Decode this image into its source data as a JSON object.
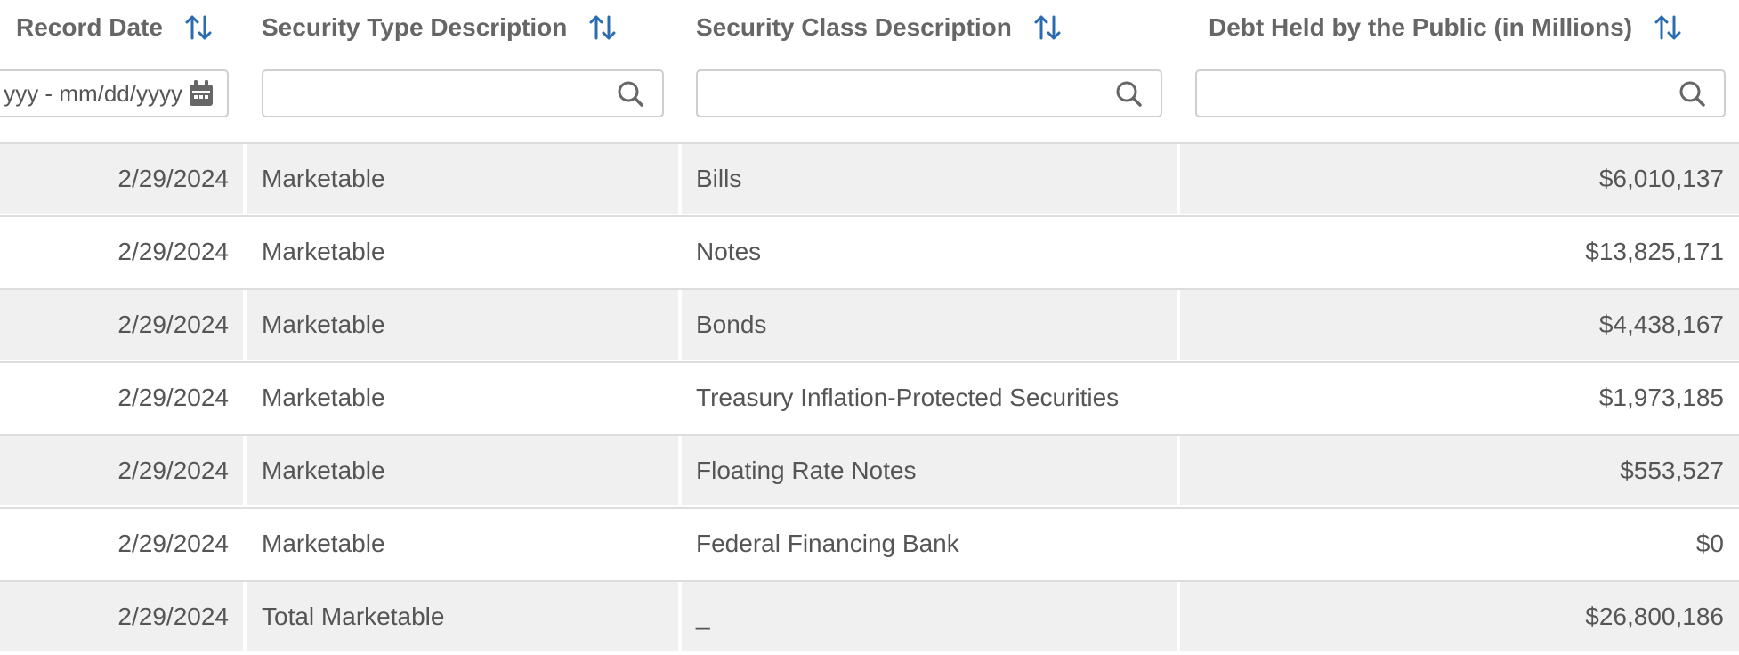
{
  "columns": [
    {
      "label": "Record Date",
      "filter_text": "yyy - mm/dd/yyyy",
      "filter_icon": "calendar-icon",
      "sort_icon": "sort-arrows-icon"
    },
    {
      "label": "Security Type Description",
      "filter_text": "",
      "filter_icon": "search-icon",
      "sort_icon": "sort-arrows-icon"
    },
    {
      "label": "Security Class Description",
      "filter_text": "",
      "filter_icon": "search-icon",
      "sort_icon": "sort-arrows-icon"
    },
    {
      "label": "Debt Held by the Public (in Millions)",
      "filter_text": "",
      "filter_icon": "search-icon",
      "sort_icon": "sort-arrows-icon"
    }
  ],
  "rows": [
    {
      "record_date": "2/29/2024",
      "security_type": "Marketable",
      "security_class": "Bills",
      "debt_held": "$6,010,137"
    },
    {
      "record_date": "2/29/2024",
      "security_type": "Marketable",
      "security_class": "Notes",
      "debt_held": "$13,825,171"
    },
    {
      "record_date": "2/29/2024",
      "security_type": "Marketable",
      "security_class": "Bonds",
      "debt_held": "$4,438,167"
    },
    {
      "record_date": "2/29/2024",
      "security_type": "Marketable",
      "security_class": "Treasury Inflation-Protected Securities",
      "debt_held": "$1,973,185"
    },
    {
      "record_date": "2/29/2024",
      "security_type": "Marketable",
      "security_class": "Floating Rate Notes",
      "debt_held": "$553,527"
    },
    {
      "record_date": "2/29/2024",
      "security_type": "Marketable",
      "security_class": "Federal Financing Bank",
      "debt_held": "$0"
    },
    {
      "record_date": "2/29/2024",
      "security_type": "Total Marketable",
      "security_class": "_",
      "debt_held": "$26,800,186"
    }
  ],
  "colors": {
    "sort_icon": "#2b6cb0",
    "header_text": "#666666",
    "cell_text": "#555555",
    "row_shade": "#f0f0f0",
    "rule": "#dddddd"
  }
}
